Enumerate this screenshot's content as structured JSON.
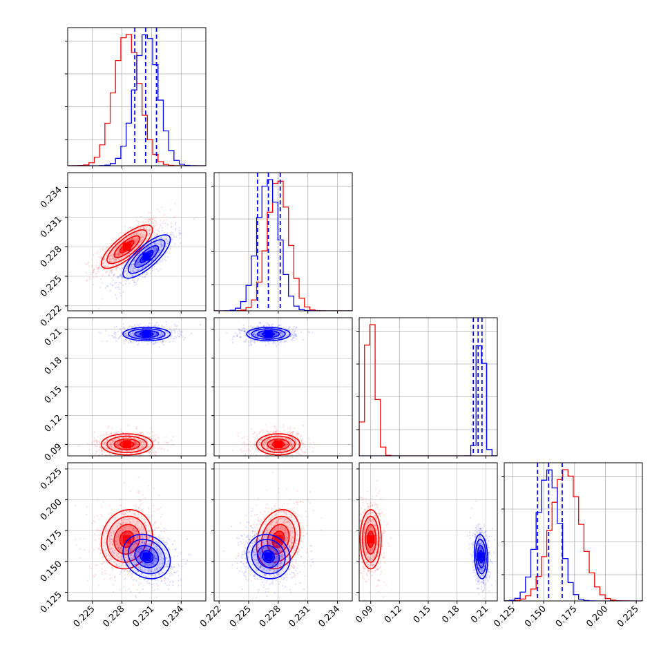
{
  "chart_data": {
    "type": "corner",
    "colors": {
      "red": "#ff0000",
      "blue": "#0000ff",
      "grid": "#b0b0b0",
      "axes": "#000000"
    },
    "grid": true,
    "dims": [
      {
        "range": [
          0.2225,
          0.2365
        ],
        "ticks": [
          0.225,
          0.228,
          0.231,
          0.234
        ],
        "tick_labels": [
          "0.225",
          "0.228",
          "0.231",
          "0.234"
        ]
      },
      {
        "range": [
          0.2215,
          0.2355
        ],
        "ticks": [
          0.222,
          0.225,
          0.228,
          0.231,
          0.234
        ],
        "tick_labels": [
          "0.222",
          "0.225",
          "0.228",
          "0.231",
          "0.234"
        ]
      },
      {
        "range": [
          0.078,
          0.222
        ],
        "ticks": [
          0.09,
          0.12,
          0.15,
          0.18,
          0.21
        ],
        "tick_labels": [
          "0.09",
          "0.12",
          "0.15",
          "0.18",
          "0.21"
        ]
      },
      {
        "range": [
          0.118,
          0.23
        ],
        "ticks": [
          0.125,
          0.15,
          0.175,
          0.2,
          0.225
        ],
        "tick_labels": [
          "0.125",
          "0.150",
          "0.175",
          "0.200",
          "0.225"
        ]
      }
    ],
    "series": [
      {
        "color_key": "red",
        "mean": [
          0.2285,
          0.228,
          0.09,
          0.168
        ],
        "std": [
          0.0013,
          0.0011,
          0.0055,
          0.012
        ],
        "corr": {
          "0-1": 0.78,
          "0-2": 0.0,
          "0-3": 0.1,
          "1-2": 0.0,
          "1-3": 0.2,
          "2-3": 0.0
        }
      },
      {
        "color_key": "blue",
        "mean": [
          0.2305,
          0.227,
          0.205,
          0.154
        ],
        "std": [
          0.0012,
          0.0011,
          0.0035,
          0.009
        ],
        "corr": {
          "0-1": 0.78,
          "0-2": 0.0,
          "0-3": -0.2,
          "1-2": 0.0,
          "1-3": -0.1,
          "2-3": -0.15
        }
      }
    ],
    "quantile_lines": [
      [
        0.2293,
        0.2304,
        0.2315
      ],
      [
        0.2259,
        0.227,
        0.2282
      ],
      [
        0.197,
        0.202,
        0.206
      ],
      [
        0.145,
        0.154,
        0.165
      ]
    ]
  }
}
